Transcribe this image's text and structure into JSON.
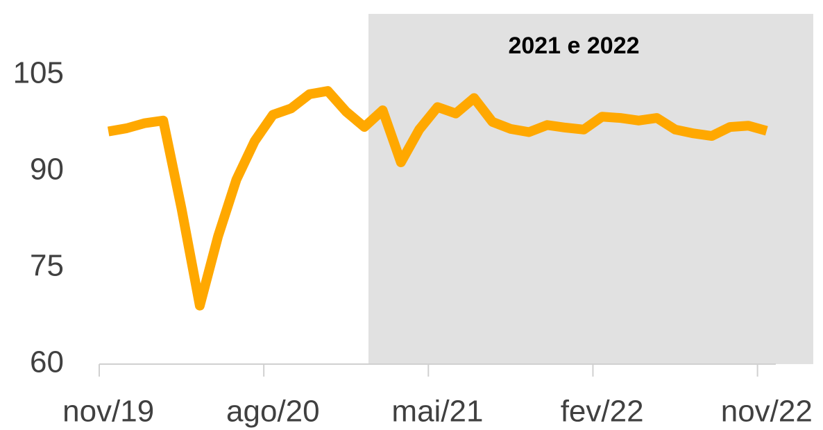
{
  "chart_data": {
    "type": "line",
    "annotation": "2021 e 2022",
    "categories": [
      "nov/19",
      null,
      null,
      null,
      null,
      null,
      null,
      null,
      null,
      "ago/20",
      null,
      null,
      null,
      null,
      null,
      null,
      null,
      null,
      "mai/21",
      null,
      null,
      null,
      null,
      null,
      null,
      null,
      null,
      "fev/22",
      null,
      null,
      null,
      null,
      null,
      null,
      null,
      null,
      "nov/22"
    ],
    "series": [
      {
        "color": "#ffa800",
        "values": [
          96.2,
          96.7,
          97.5,
          97.9,
          84.2,
          69.1,
          79.9,
          88.7,
          94.7,
          98.8,
          99.8,
          102,
          102.5,
          99.3,
          96.9,
          99.5,
          91.4,
          96.5,
          100,
          99,
          101.4,
          97.7,
          96.6,
          96.1,
          97.2,
          96.8,
          96.5,
          98.5,
          98.3,
          97.9,
          98.3,
          96.5,
          95.9,
          95.5,
          96.9,
          97.1,
          96.3
        ]
      }
    ],
    "ylim": [
      60,
      114.5
    ],
    "yticks": [
      60,
      75,
      90,
      105
    ],
    "grid": false
  }
}
